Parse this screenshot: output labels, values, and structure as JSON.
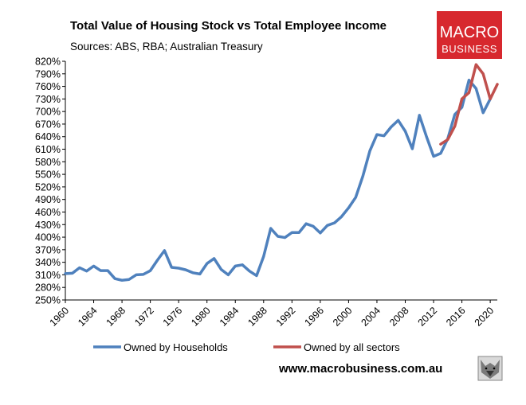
{
  "header": {
    "title": "Total Value of Housing Stock vs Total Employee Income",
    "subtitle": "Sources: ABS, RBA; Australian Treasury"
  },
  "logo": {
    "line1": "MACRO",
    "line2": "BUSINESS",
    "bg_color": "#d7282e"
  },
  "footer": {
    "url": "www.macrobusiness.com.au"
  },
  "chart_data": {
    "type": "line",
    "title": "Total Value of Housing Stock vs Total Employee Income",
    "xlabel": "",
    "ylabel": "",
    "ylim": [
      250,
      820
    ],
    "xlim": [
      1960,
      2021
    ],
    "y_ticks": [
      "250%",
      "280%",
      "310%",
      "340%",
      "370%",
      "400%",
      "430%",
      "460%",
      "490%",
      "520%",
      "550%",
      "580%",
      "610%",
      "640%",
      "670%",
      "700%",
      "730%",
      "760%",
      "790%",
      "820%"
    ],
    "y_tick_values": [
      250,
      280,
      310,
      340,
      370,
      400,
      430,
      460,
      490,
      520,
      550,
      580,
      610,
      640,
      670,
      700,
      730,
      760,
      790,
      820
    ],
    "x_ticks": [
      "1960",
      "1964",
      "1968",
      "1972",
      "1976",
      "1980",
      "1984",
      "1988",
      "1992",
      "1996",
      "2000",
      "2004",
      "2008",
      "2012",
      "2016",
      "2020"
    ],
    "x_tick_values": [
      1960,
      1964,
      1968,
      1972,
      1976,
      1980,
      1984,
      1988,
      1992,
      1996,
      2000,
      2004,
      2008,
      2012,
      2016,
      2020
    ],
    "legend_position": "bottom",
    "series": [
      {
        "name": "Owned by Households",
        "color": "#4f81bd",
        "x": [
          1960,
          1961,
          1962,
          1963,
          1964,
          1965,
          1966,
          1967,
          1968,
          1969,
          1970,
          1971,
          1972,
          1973,
          1974,
          1975,
          1976,
          1977,
          1978,
          1979,
          1980,
          1981,
          1982,
          1983,
          1984,
          1985,
          1986,
          1987,
          1988,
          1989,
          1990,
          1991,
          1992,
          1993,
          1994,
          1995,
          1996,
          1997,
          1998,
          1999,
          2000,
          2001,
          2002,
          2003,
          2004,
          2005,
          2006,
          2007,
          2008,
          2009,
          2010,
          2011,
          2012,
          2013,
          2014,
          2015,
          2016,
          2017,
          2018,
          2019,
          2020,
          2021
        ],
        "values": [
          313,
          314,
          327,
          319,
          331,
          320,
          320,
          301,
          297,
          299,
          310,
          311,
          320,
          345,
          368,
          328,
          326,
          322,
          315,
          312,
          337,
          349,
          323,
          310,
          331,
          334,
          319,
          308,
          354,
          421,
          402,
          399,
          411,
          411,
          432,
          426,
          410,
          428,
          434,
          449,
          470,
          495,
          545,
          606,
          645,
          642,
          663,
          679,
          653,
          611,
          691,
          640,
          593,
          600,
          635,
          693,
          710,
          775,
          755,
          697,
          730,
          null
        ]
      },
      {
        "name": "Owned by all sectors",
        "color": "#c0504d",
        "x": [
          2013,
          2014,
          2015,
          2016,
          2017,
          2018,
          2019,
          2020,
          2021
        ],
        "values": [
          622,
          633,
          665,
          730,
          745,
          812,
          790,
          730,
          765
        ]
      }
    ]
  }
}
